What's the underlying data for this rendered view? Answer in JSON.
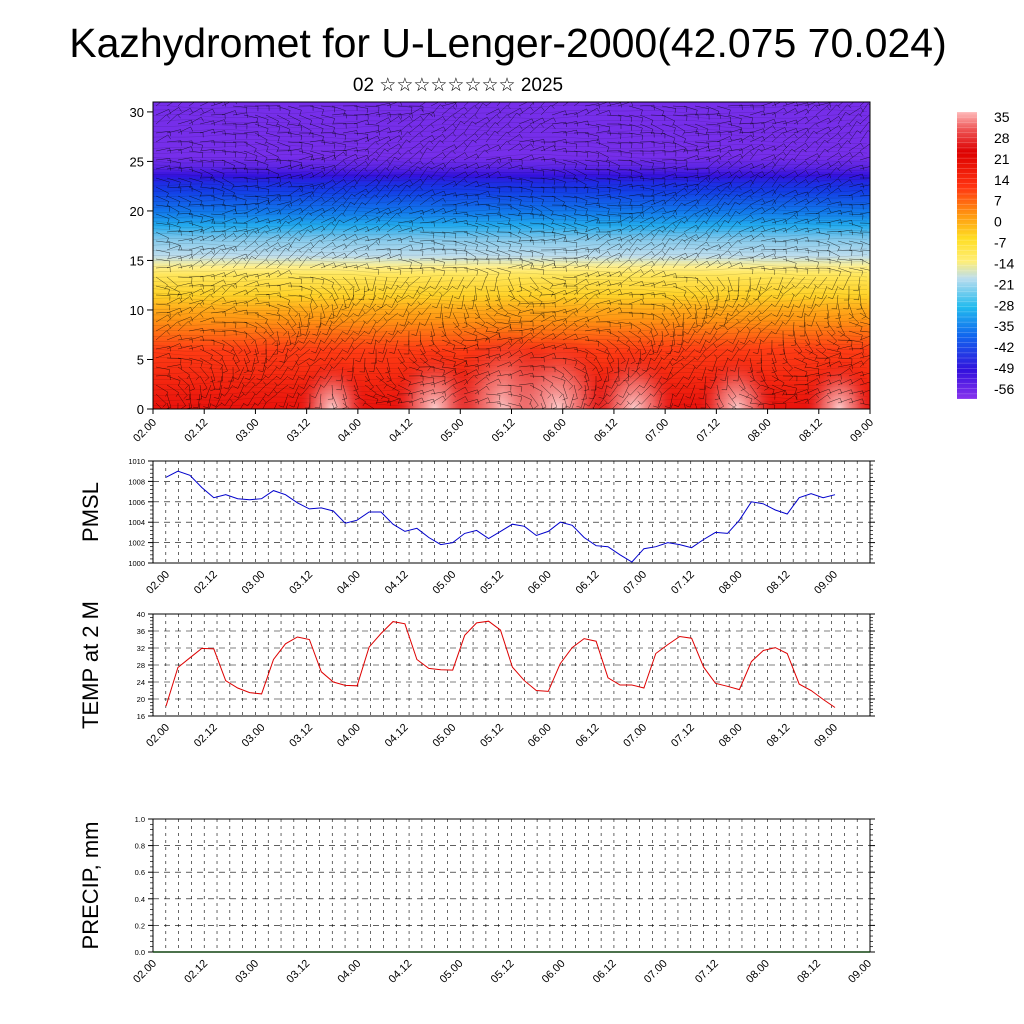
{
  "title": "Kazhydromet for U-Lenger-2000(42.075 70.024)",
  "subtitle": "02 ☆☆☆☆☆☆☆☆ 2025",
  "colors": {
    "pmsl_line": "#0000cc",
    "temp_line": "#dd0000",
    "precip_baseline": "#114411",
    "wind_barb": "#000000"
  },
  "chart_data": [
    {
      "type": "heatmap",
      "name": "cross-section",
      "x_ticks": [
        "02.00",
        "02.12",
        "03.00",
        "03.12",
        "04.00",
        "04.12",
        "05.00",
        "05.12",
        "06.00",
        "06.12",
        "07.00",
        "07.12",
        "08.00",
        "08.12",
        "09.00"
      ],
      "y_ticks": [
        "0",
        "5",
        "10",
        "15",
        "20",
        "25",
        "30"
      ],
      "ylim": [
        0,
        31
      ],
      "colorbar_ticks": [
        "35",
        "28",
        "21",
        "14",
        "7",
        "0",
        "-7",
        "-14",
        "-21",
        "-28",
        "-35",
        "-42",
        "-49",
        "-56"
      ],
      "colorbar_range": [
        -60,
        38
      ],
      "overlay": "wind barbs",
      "bands": [
        {
          "height": 0,
          "temp": 20
        },
        {
          "height": 6,
          "temp": 14
        },
        {
          "height": 10,
          "temp": 5
        },
        {
          "height": 13,
          "temp": -5
        },
        {
          "height": 15,
          "temp": -12
        },
        {
          "height": 17,
          "temp": -20
        },
        {
          "height": 20,
          "temp": -35
        },
        {
          "height": 23,
          "temp": -45
        },
        {
          "height": 24.5,
          "temp": -55
        },
        {
          "height": 25.5,
          "temp": -58
        },
        {
          "height": 31,
          "temp": -58
        }
      ],
      "warm_spots": [
        {
          "x": 1.75,
          "y": 0,
          "value": 28
        },
        {
          "x": 2.75,
          "y": 0,
          "value": 30
        },
        {
          "x": 3.45,
          "y": 0,
          "value": 34
        },
        {
          "x": 3.95,
          "y": 0,
          "value": 33
        },
        {
          "x": 4.7,
          "y": 0,
          "value": 30
        },
        {
          "x": 5.7,
          "y": 0,
          "value": 29
        },
        {
          "x": 6.7,
          "y": 0,
          "value": 28
        }
      ]
    },
    {
      "type": "line",
      "ylabel": "PMSL",
      "x_ticks": [
        "02.00",
        "02.12",
        "03.00",
        "03.12",
        "04.00",
        "04.12",
        "05.00",
        "05.12",
        "06.00",
        "06.12",
        "07.00",
        "07.12",
        "08.00",
        "08.12",
        "09.00"
      ],
      "y_ticks": [
        "1000",
        "1002",
        "1004",
        "1006",
        "1008",
        "1010"
      ],
      "ylim": [
        1000,
        1010
      ],
      "x": [
        0,
        0.125,
        0.25,
        0.375,
        0.5,
        0.625,
        0.75,
        0.875,
        1,
        1.125,
        1.25,
        1.375,
        1.5,
        1.625,
        1.75,
        1.875,
        2,
        2.125,
        2.25,
        2.375,
        2.5,
        2.625,
        2.75,
        2.875,
        3,
        3.125,
        3.25,
        3.375,
        3.5,
        3.625,
        3.75,
        3.875,
        4,
        4.125,
        4.25,
        4.375,
        4.5,
        4.625,
        4.75,
        4.875,
        5,
        5.125,
        5.25,
        5.375,
        5.5,
        5.625,
        5.75,
        5.875,
        6,
        6.125,
        6.25,
        6.375,
        6.5,
        6.625,
        6.75,
        6.875,
        7
      ],
      "values": [
        1008.4,
        1009.0,
        1008.6,
        1007.4,
        1006.4,
        1006.7,
        1006.3,
        1006.2,
        1006.3,
        1007.1,
        1006.7,
        1005.9,
        1005.3,
        1005.4,
        1005.1,
        1003.9,
        1004.2,
        1005.0,
        1005.0,
        1003.8,
        1003.1,
        1003.4,
        1002.5,
        1001.8,
        1002.0,
        1002.9,
        1003.2,
        1002.4,
        1003.1,
        1003.8,
        1003.6,
        1002.7,
        1003.1,
        1004.0,
        1003.7,
        1002.5,
        1001.7,
        1001.6,
        1000.8,
        1000.1,
        1001.4,
        1001.6,
        1002.0,
        1001.8,
        1001.5,
        1002.3,
        1003.0,
        1002.9,
        1004.2,
        1006.0,
        1005.8,
        1005.2,
        1004.8,
        1006.4,
        1006.8,
        1006.4,
        1006.7
      ]
    },
    {
      "type": "line",
      "ylabel": "TEMP at 2 M",
      "x_ticks": [
        "02.00",
        "02.12",
        "03.00",
        "03.12",
        "04.00",
        "04.12",
        "05.00",
        "05.12",
        "06.00",
        "06.12",
        "07.00",
        "07.12",
        "08.00",
        "08.12",
        "09.00"
      ],
      "y_ticks": [
        "16",
        "20",
        "24",
        "28",
        "32",
        "36",
        "40"
      ],
      "ylim": [
        16,
        40
      ],
      "x": [
        0,
        0.125,
        0.25,
        0.375,
        0.5,
        0.625,
        0.75,
        0.875,
        1,
        1.125,
        1.25,
        1.375,
        1.5,
        1.625,
        1.75,
        1.875,
        2,
        2.125,
        2.25,
        2.375,
        2.5,
        2.625,
        2.75,
        2.875,
        3,
        3.125,
        3.25,
        3.375,
        3.5,
        3.625,
        3.75,
        3.875,
        4,
        4.125,
        4.25,
        4.375,
        4.5,
        4.625,
        4.75,
        4.875,
        5,
        5.125,
        5.25,
        5.375,
        5.5,
        5.625,
        5.75,
        5.875,
        6,
        6.125,
        6.25,
        6.375,
        6.5,
        6.625,
        6.75,
        6.875,
        7
      ],
      "values": [
        18.3,
        27.4,
        29.7,
        31.9,
        31.8,
        24.3,
        22.6,
        21.5,
        21.2,
        29.3,
        33.0,
        34.6,
        34.0,
        26.4,
        24.0,
        23.2,
        23.1,
        32.2,
        35.4,
        38.2,
        37.7,
        29.3,
        27.2,
        26.9,
        26.8,
        35.0,
        37.9,
        38.3,
        36.2,
        27.5,
        24.3,
        22.0,
        21.8,
        28.3,
        32.1,
        34.2,
        33.6,
        25.0,
        23.3,
        23.3,
        22.6,
        30.7,
        32.8,
        34.7,
        34.3,
        27.5,
        23.7,
        23.0,
        22.2,
        28.8,
        31.4,
        32.1,
        30.7,
        23.5,
        22.0,
        19.9,
        18.0
      ]
    },
    {
      "type": "bar",
      "ylabel": "PRECIP, mm",
      "x_ticks": [
        "02.00",
        "02.12",
        "03.00",
        "03.12",
        "04.00",
        "04.12",
        "05.00",
        "05.12",
        "06.00",
        "06.12",
        "07.00",
        "07.12",
        "08.00",
        "08.12",
        "09.00"
      ],
      "y_ticks": [
        "0.0",
        "0.2",
        "0.4",
        "0.6",
        "0.8",
        "1.0"
      ],
      "ylim": [
        0,
        1.0
      ],
      "values": []
    }
  ]
}
